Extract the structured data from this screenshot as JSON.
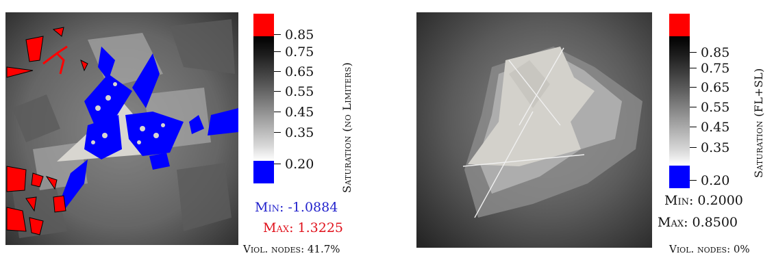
{
  "colors": {
    "over": "#ff0000",
    "under": "#0000ff",
    "min_text": "#2222cc",
    "max_text": "#e0101a"
  },
  "left": {
    "ticks": [
      "0.85",
      "0.75",
      "0.65",
      "0.55",
      "0.45",
      "0.35",
      "0.20"
    ],
    "colorbar_title": "Saturation (no Limiters)",
    "min_text": "Min: -1.0884",
    "max_text": "Max: 1.3225",
    "viol_text": "Viol. nodes: 41.7%"
  },
  "right": {
    "ticks": [
      "0.85",
      "0.75",
      "0.65",
      "0.55",
      "0.45",
      "0.35",
      "0.20"
    ],
    "colorbar_title": "Saturation (FL+SL)",
    "min_text": "Min: 0.2000",
    "max_text": "Max: 0.8500",
    "viol_text": "Viol. nodes: 0%"
  }
}
